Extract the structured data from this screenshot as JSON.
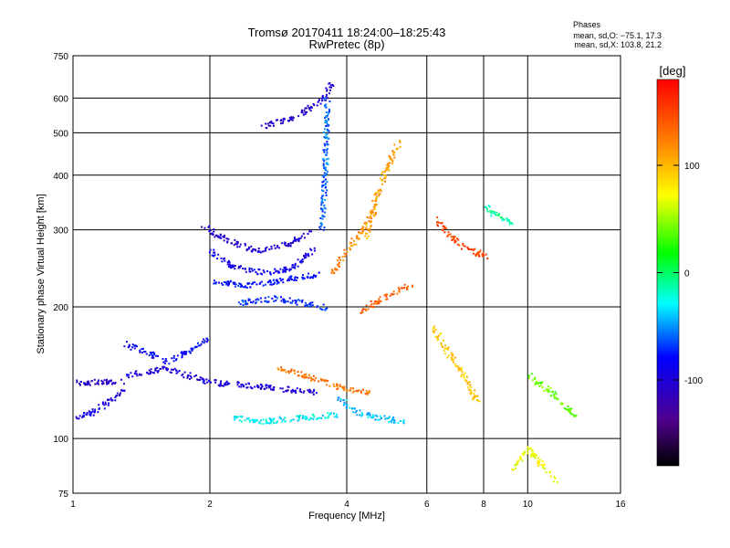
{
  "chart_data": {
    "type": "scatter",
    "title": "Tromsø 20170411 18:24:00–18:25:43",
    "subtitle": "RwPretec (8p)",
    "xlabel": "Frequency [MHz]",
    "ylabel": "Stationary phase Virtual Height [km]",
    "x_scale": "log",
    "y_scale": "log",
    "xlim": [
      1,
      16
    ],
    "ylim": [
      75,
      750
    ],
    "x_ticks": [
      1,
      2,
      4,
      6,
      8,
      10,
      16
    ],
    "y_ticks": [
      75,
      100,
      200,
      300,
      400,
      500,
      600,
      750
    ],
    "grid": true,
    "legend": {
      "title": "Phases",
      "lines": [
        "mean, sd,O: −75.1, 17.3",
        "mean, sd,X: 103.8, 21.2"
      ],
      "placement": "top-right"
    },
    "colorbar": {
      "label": "[deg]",
      "ticks": [
        100,
        0,
        -100
      ],
      "range": [
        -180,
        180
      ]
    },
    "traces": [
      {
        "x": [
          1.0,
          1.3
        ],
        "y": [
          135,
          135
        ],
        "phase": -110
      },
      {
        "x": [
          1.3,
          1.6,
          2.0,
          2.6,
          3.4
        ],
        "y": [
          140,
          145,
          135,
          132,
          128
        ],
        "phase": -100
      },
      {
        "x": [
          1.0,
          1.1,
          1.3
        ],
        "y": [
          112,
          115,
          130
        ],
        "phase": -95
      },
      {
        "x": [
          1.3,
          1.45,
          1.6,
          1.8,
          2.0
        ],
        "y": [
          165,
          158,
          150,
          160,
          170
        ],
        "phase": -85
      },
      {
        "x": [
          2.0,
          2.2,
          2.6,
          3.0,
          3.4
        ],
        "y": [
          270,
          250,
          240,
          245,
          275
        ],
        "phase": -90
      },
      {
        "x": [
          1.9,
          2.1,
          2.5,
          3.0,
          3.3
        ],
        "y": [
          310,
          290,
          270,
          280,
          300
        ],
        "phase": -105
      },
      {
        "x": [
          2.0,
          2.4,
          2.8,
          3.2,
          3.5
        ],
        "y": [
          230,
          225,
          230,
          235,
          240
        ],
        "phase": -80
      },
      {
        "x": [
          2.3,
          2.8,
          3.2,
          3.6
        ],
        "y": [
          205,
          210,
          205,
          200
        ],
        "phase": -70
      },
      {
        "x": [
          2.6,
          3.0,
          3.3,
          3.55,
          3.65,
          3.7
        ],
        "y": [
          520,
          540,
          570,
          600,
          640,
          650
        ],
        "phase": -105
      },
      {
        "x": [
          3.5,
          3.55,
          3.58,
          3.6,
          3.62
        ],
        "y": [
          300,
          360,
          430,
          520,
          600
        ],
        "phase": -60
      },
      {
        "x": [
          2.8,
          3.2,
          3.6,
          4.0,
          4.5
        ],
        "y": [
          145,
          140,
          135,
          130,
          128
        ],
        "phase": 130
      },
      {
        "x": [
          3.7,
          4.0,
          4.3,
          4.6
        ],
        "y": [
          240,
          270,
          300,
          330
        ],
        "phase": 120
      },
      {
        "x": [
          4.2,
          4.6,
          5.0,
          5.5
        ],
        "y": [
          195,
          205,
          215,
          225
        ],
        "phase": 140
      },
      {
        "x": [
          4.4,
          4.6,
          4.9,
          5.2
        ],
        "y": [
          290,
          350,
          420,
          480
        ],
        "phase": 110
      },
      {
        "x": [
          3.8,
          4.2,
          4.7,
          5.3
        ],
        "y": [
          125,
          115,
          112,
          110
        ],
        "phase": -40
      },
      {
        "x": [
          2.2,
          2.6,
          3.2,
          3.8
        ],
        "y": [
          112,
          110,
          112,
          114
        ],
        "phase": -30
      },
      {
        "x": [
          6.2,
          6.6,
          7.2,
          7.8
        ],
        "y": [
          180,
          160,
          140,
          120
        ],
        "phase": 95
      },
      {
        "x": [
          8.1,
          8.3,
          9.3
        ],
        "y": [
          340,
          330,
          310
        ],
        "phase": -10
      },
      {
        "x": [
          10.0,
          11.0,
          12.0,
          12.8
        ],
        "y": [
          140,
          130,
          120,
          110
        ],
        "phase": 40
      },
      {
        "x": [
          9.2,
          10.0,
          11.5
        ],
        "y": [
          85,
          95,
          80
        ],
        "phase": 70
      },
      {
        "x": [
          6.2,
          7.0,
          8.2
        ],
        "y": [
          320,
          280,
          260
        ],
        "phase": 150
      }
    ]
  }
}
